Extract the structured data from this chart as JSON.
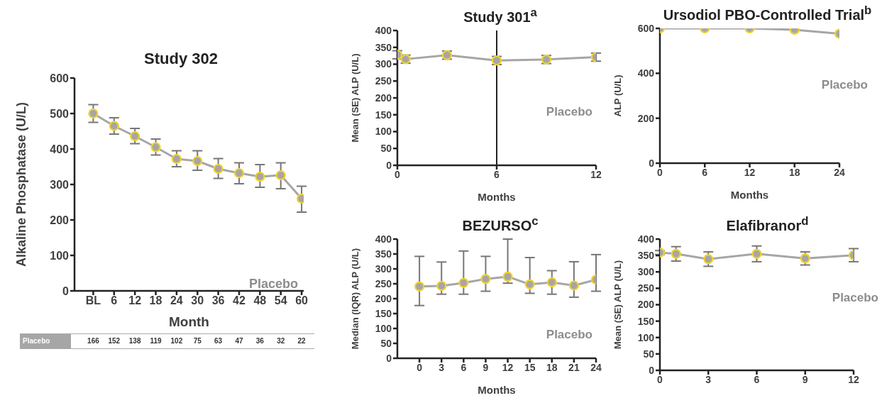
{
  "chart_data": [
    {
      "type": "line",
      "title": "Study 302",
      "xlabel": "Month",
      "ylabel": "Alkaline Phosphatase (U/L)",
      "categories": [
        "BL",
        "6",
        "12",
        "18",
        "24",
        "30",
        "36",
        "42",
        "48",
        "54",
        "60"
      ],
      "ylim": [
        0,
        600
      ],
      "yticks": [
        0,
        100,
        200,
        300,
        400,
        500,
        600
      ],
      "marker": "circle",
      "grid": false,
      "legend": false,
      "series": [
        {
          "name": "Placebo",
          "color": "#a6a6a6",
          "values": [
            500,
            465,
            436,
            405,
            372,
            366,
            344,
            332,
            322,
            326,
            260
          ],
          "errors": [
            [
              475,
              525
            ],
            [
              442,
              488
            ],
            [
              415,
              458
            ],
            [
              383,
              428
            ],
            [
              350,
              395
            ],
            [
              340,
              395
            ],
            [
              317,
              373
            ],
            [
              302,
              361
            ],
            [
              292,
              356
            ],
            [
              288,
              361
            ],
            [
              222,
              295
            ]
          ]
        }
      ],
      "annotations": [
        "Placebo",
        "166",
        "152",
        "138",
        "119",
        "102",
        "75",
        "63",
        "47",
        "36",
        "32",
        "22"
      ]
    },
    {
      "type": "line",
      "title": "Study 301$^{a}$",
      "xlabel": "Months",
      "ylabel": "Mean (SE) ALP (U/L)",
      "xlim": [
        0,
        12
      ],
      "xticks": [
        0,
        6,
        12
      ],
      "ylim": [
        0,
        400
      ],
      "yticks": [
        0,
        50,
        100,
        150,
        200,
        250,
        300,
        350,
        400
      ],
      "marker": "circle",
      "grid": false,
      "legend": false,
      "series": [
        {
          "name": "Placebo",
          "color": "#a6a6a6",
          "x": [
            0,
            0.5,
            3,
            6,
            9,
            12
          ],
          "values": [
            328,
            315,
            327,
            311,
            314,
            321
          ],
          "errors": [
            12,
            12,
            12,
            12,
            12,
            12
          ]
        }
      ],
      "ref_lines": [
        {
          "axis": "x",
          "value": 6
        }
      ]
    },
    {
      "type": "line",
      "title": "Ursodiol PBO-Controlled Trial$^{b}$",
      "xlabel": "Months",
      "ylabel": "ALP (U/L)",
      "xlim": [
        0,
        24
      ],
      "xticks": [
        0,
        6,
        12,
        18,
        24
      ],
      "ylim": [
        0,
        600
      ],
      "yticks": [
        0,
        200,
        400,
        600
      ],
      "marker": "circle",
      "grid": false,
      "legend": false,
      "series": [
        {
          "name": "Placebo",
          "color": "#a6a6a6",
          "x": [
            0,
            6,
            12,
            18,
            24
          ],
          "values": [
            600,
            600,
            600,
            594,
            576
          ]
        }
      ]
    },
    {
      "type": "line",
      "title": "BEZURSO$^{c}$",
      "xlabel": "Months",
      "ylabel": "Median (IQR) ALP (U/L)",
      "xlim": [
        -3,
        24
      ],
      "xticks": [
        0,
        3,
        6,
        9,
        12,
        15,
        18,
        21,
        24
      ],
      "ylim": [
        0,
        400
      ],
      "yticks": [
        0,
        50,
        100,
        150,
        200,
        250,
        300,
        350,
        400
      ],
      "marker": "circle",
      "grid": false,
      "legend": false,
      "series": [
        {
          "name": "Placebo",
          "color": "#a6a6a6",
          "x": [
            0,
            3,
            6,
            9,
            12,
            15,
            18,
            21,
            24
          ],
          "values": [
            241,
            243,
            253,
            266,
            274,
            248,
            255,
            244,
            264
          ],
          "errors": [
            [
              177,
              342
            ],
            [
              215,
              323
            ],
            [
              215,
              360
            ],
            [
              225,
              342
            ],
            [
              252,
              400
            ],
            [
              218,
              338
            ],
            [
              215,
              294
            ],
            [
              205,
              324
            ],
            [
              225,
              348
            ]
          ]
        }
      ]
    },
    {
      "type": "line",
      "title": "Elafibranor$^{d}$",
      "ylabel": "Mean (SE) ALP (U/L)",
      "xlim": [
        0,
        12
      ],
      "xticks": [
        0,
        3,
        6,
        9,
        12
      ],
      "ylim": [
        0,
        400
      ],
      "yticks": [
        0,
        50,
        100,
        150,
        200,
        250,
        300,
        350,
        400
      ],
      "marker": "circle",
      "grid": false,
      "legend": false,
      "series": [
        {
          "name": "Placebo",
          "color": "#a6a6a6",
          "x": [
            0,
            1,
            3,
            6,
            9,
            12
          ],
          "values": [
            359,
            355,
            339,
            355,
            341,
            351
          ],
          "errors": [
            6,
            22,
            22,
            24,
            20,
            20
          ]
        }
      ]
    }
  ]
}
